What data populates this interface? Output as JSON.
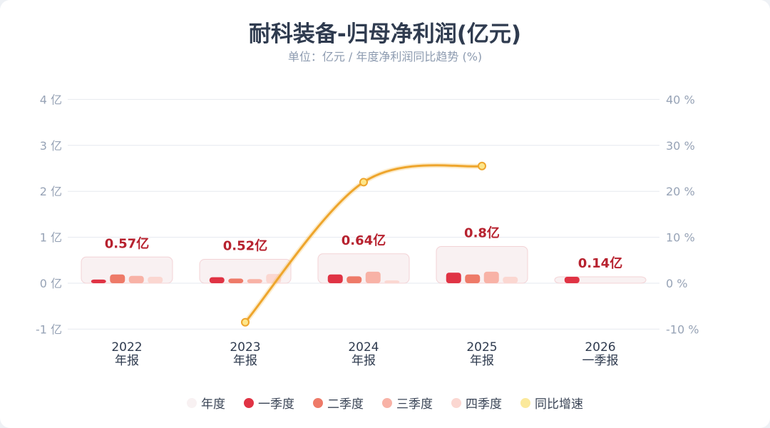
{
  "title": "耐科装备-归母净利润(亿元)",
  "subtitle": "单位：亿元 / 年度净利润同比趋势 (%)",
  "legend": [
    {
      "label": "年度",
      "color": "#f8f1f2"
    },
    {
      "label": "一季度",
      "color": "#e03344"
    },
    {
      "label": "二季度",
      "color": "#ee7a68"
    },
    {
      "label": "三季度",
      "color": "#f8b2a6"
    },
    {
      "label": "四季度",
      "color": "#fbd7d1"
    },
    {
      "label": "同比增速",
      "color": "#fbe99b"
    }
  ],
  "chart_data": {
    "type": "bar",
    "title": "耐科装备-归母净利润(亿元)",
    "subtitle": "单位：亿元 / 年度净利润同比趋势 (%)",
    "categories": [
      {
        "year": "2022",
        "period": "年报"
      },
      {
        "year": "2023",
        "period": "年报"
      },
      {
        "year": "2024",
        "period": "年报"
      },
      {
        "year": "2025",
        "period": "年报"
      },
      {
        "year": "2026",
        "period": "一季报"
      }
    ],
    "annual": [
      0.57,
      0.52,
      0.64,
      0.8,
      0.14
    ],
    "annual_labels": [
      "0.57亿",
      "0.52亿",
      "0.64亿",
      "0.8亿",
      "0.14亿"
    ],
    "quarters": [
      {
        "name": "一季度",
        "color": "#e03344",
        "values": [
          0.08,
          0.13,
          0.19,
          0.23,
          0.14
        ]
      },
      {
        "name": "二季度",
        "color": "#ee7a68",
        "values": [
          0.19,
          0.1,
          0.15,
          0.19,
          null
        ]
      },
      {
        "name": "三季度",
        "color": "#f8b2a6",
        "values": [
          0.16,
          0.09,
          0.25,
          0.25,
          null
        ]
      },
      {
        "name": "四季度",
        "color": "#fbd7d1",
        "values": [
          0.14,
          0.2,
          0.06,
          0.14,
          null
        ]
      }
    ],
    "growth": {
      "name": "同比增速",
      "values": [
        null,
        -8.5,
        22.0,
        25.5,
        null
      ]
    },
    "y_left": {
      "ticks": [
        -1,
        0,
        1,
        2,
        3,
        4
      ],
      "tick_labels": [
        "-1 亿",
        "0 亿",
        "1 亿",
        "2 亿",
        "3 亿",
        "4 亿"
      ],
      "ylim": [
        -1,
        4
      ]
    },
    "y_right": {
      "ticks": [
        -10,
        0,
        10,
        20,
        30,
        40
      ],
      "tick_labels": [
        "-10 %",
        "0 %",
        "10 %",
        "20 %",
        "30 %",
        "40 %"
      ],
      "ylim": [
        -10,
        40
      ]
    },
    "grid": true,
    "legend_position": "bottom"
  }
}
